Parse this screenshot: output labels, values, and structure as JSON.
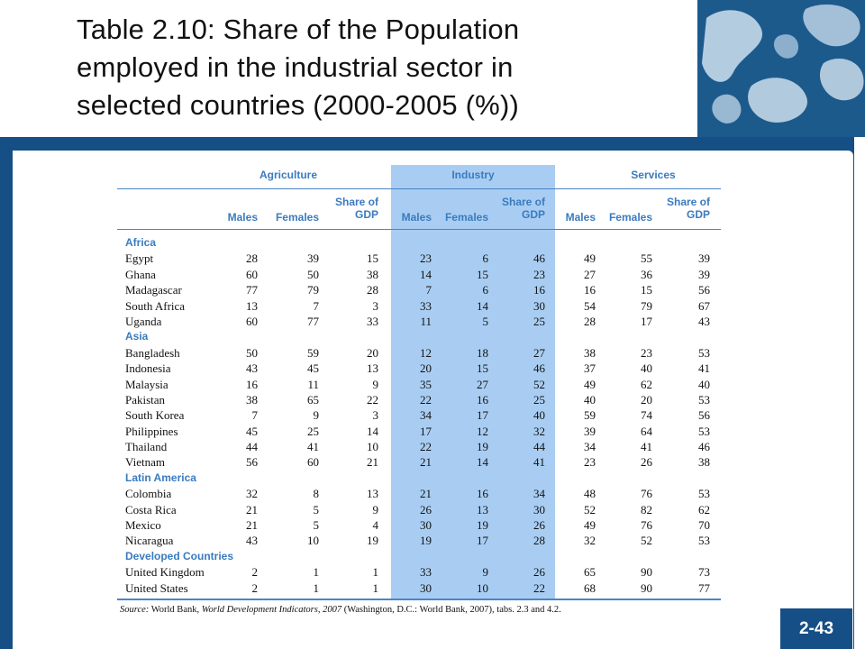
{
  "title": {
    "line1": "Table 2.10: Share of the Population",
    "line2": "employed in the industrial sector in",
    "line3": "selected countries (2000-2005 (%))"
  },
  "page_number": "2-43",
  "colors": {
    "frame": "#154f86",
    "header_text": "#3a7bbf",
    "industry_highlight": "#a9cdf2"
  },
  "table": {
    "groups": [
      "Agriculture",
      "Industry",
      "Services"
    ],
    "col_headers": [
      "Males",
      "Females",
      "Share of GDP",
      "Males",
      "Females",
      "Share of GDP",
      "Males",
      "Females",
      "Share of GDP"
    ],
    "sections": [
      {
        "name": "Africa",
        "rows": [
          {
            "country": "Egypt",
            "values": [
              "28",
              "39",
              "15",
              "23",
              "6",
              "46",
              "49",
              "55",
              "39"
            ]
          },
          {
            "country": "Ghana",
            "values": [
              "60",
              "50",
              "38",
              "14",
              "15",
              "23",
              "27",
              "36",
              "39"
            ]
          },
          {
            "country": "Madagascar",
            "values": [
              "77",
              "79",
              "28",
              "7",
              "6",
              "16",
              "16",
              "15",
              "56"
            ]
          },
          {
            "country": "South Africa",
            "values": [
              "13",
              "7",
              "3",
              "33",
              "14",
              "30",
              "54",
              "79",
              "67"
            ]
          },
          {
            "country": "Uganda",
            "values": [
              "60",
              "77",
              "33",
              "11",
              "5",
              "25",
              "28",
              "17",
              "43"
            ]
          }
        ]
      },
      {
        "name": "Asia",
        "rows": [
          {
            "country": "Bangladesh",
            "values": [
              "50",
              "59",
              "20",
              "12",
              "18",
              "27",
              "38",
              "23",
              "53"
            ]
          },
          {
            "country": "Indonesia",
            "values": [
              "43",
              "45",
              "13",
              "20",
              "15",
              "46",
              "37",
              "40",
              "41"
            ]
          },
          {
            "country": "Malaysia",
            "values": [
              "16",
              "11",
              "9",
              "35",
              "27",
              "52",
              "49",
              "62",
              "40"
            ]
          },
          {
            "country": "Pakistan",
            "values": [
              "38",
              "65",
              "22",
              "22",
              "16",
              "25",
              "40",
              "20",
              "53"
            ]
          },
          {
            "country": "South Korea",
            "values": [
              "7",
              "9",
              "3",
              "34",
              "17",
              "40",
              "59",
              "74",
              "56"
            ]
          },
          {
            "country": "Philippines",
            "values": [
              "45",
              "25",
              "14",
              "17",
              "12",
              "32",
              "39",
              "64",
              "53"
            ]
          },
          {
            "country": "Thailand",
            "values": [
              "44",
              "41",
              "10",
              "22",
              "19",
              "44",
              "34",
              "41",
              "46"
            ]
          },
          {
            "country": "Vietnam",
            "values": [
              "56",
              "60",
              "21",
              "21",
              "14",
              "41",
              "23",
              "26",
              "38"
            ]
          }
        ]
      },
      {
        "name": "Latin America",
        "rows": [
          {
            "country": "Colombia",
            "values": [
              "32",
              "8",
              "13",
              "21",
              "16",
              "34",
              "48",
              "76",
              "53"
            ]
          },
          {
            "country": "Costa Rica",
            "values": [
              "21",
              "5",
              "9",
              "26",
              "13",
              "30",
              "52",
              "82",
              "62"
            ]
          },
          {
            "country": "Mexico",
            "values": [
              "21",
              "5",
              "4",
              "30",
              "19",
              "26",
              "49",
              "76",
              "70"
            ]
          },
          {
            "country": "Nicaragua",
            "values": [
              "43",
              "10",
              "19",
              "19",
              "17",
              "28",
              "32",
              "52",
              "53"
            ]
          }
        ]
      },
      {
        "name": "Developed Countries",
        "rows": [
          {
            "country": "United Kingdom",
            "values": [
              "2",
              "1",
              "1",
              "33",
              "9",
              "26",
              "65",
              "90",
              "73"
            ]
          },
          {
            "country": "United States",
            "values": [
              "2",
              "1",
              "1",
              "30",
              "10",
              "22",
              "68",
              "90",
              "77"
            ]
          }
        ]
      }
    ],
    "source": {
      "label": "Source:",
      "text1": " World Bank, ",
      "italic": "World Development Indicators, 2007",
      "text2": " (Washington, D.C.: World Bank, 2007), tabs. 2.3 and 4.2."
    }
  }
}
